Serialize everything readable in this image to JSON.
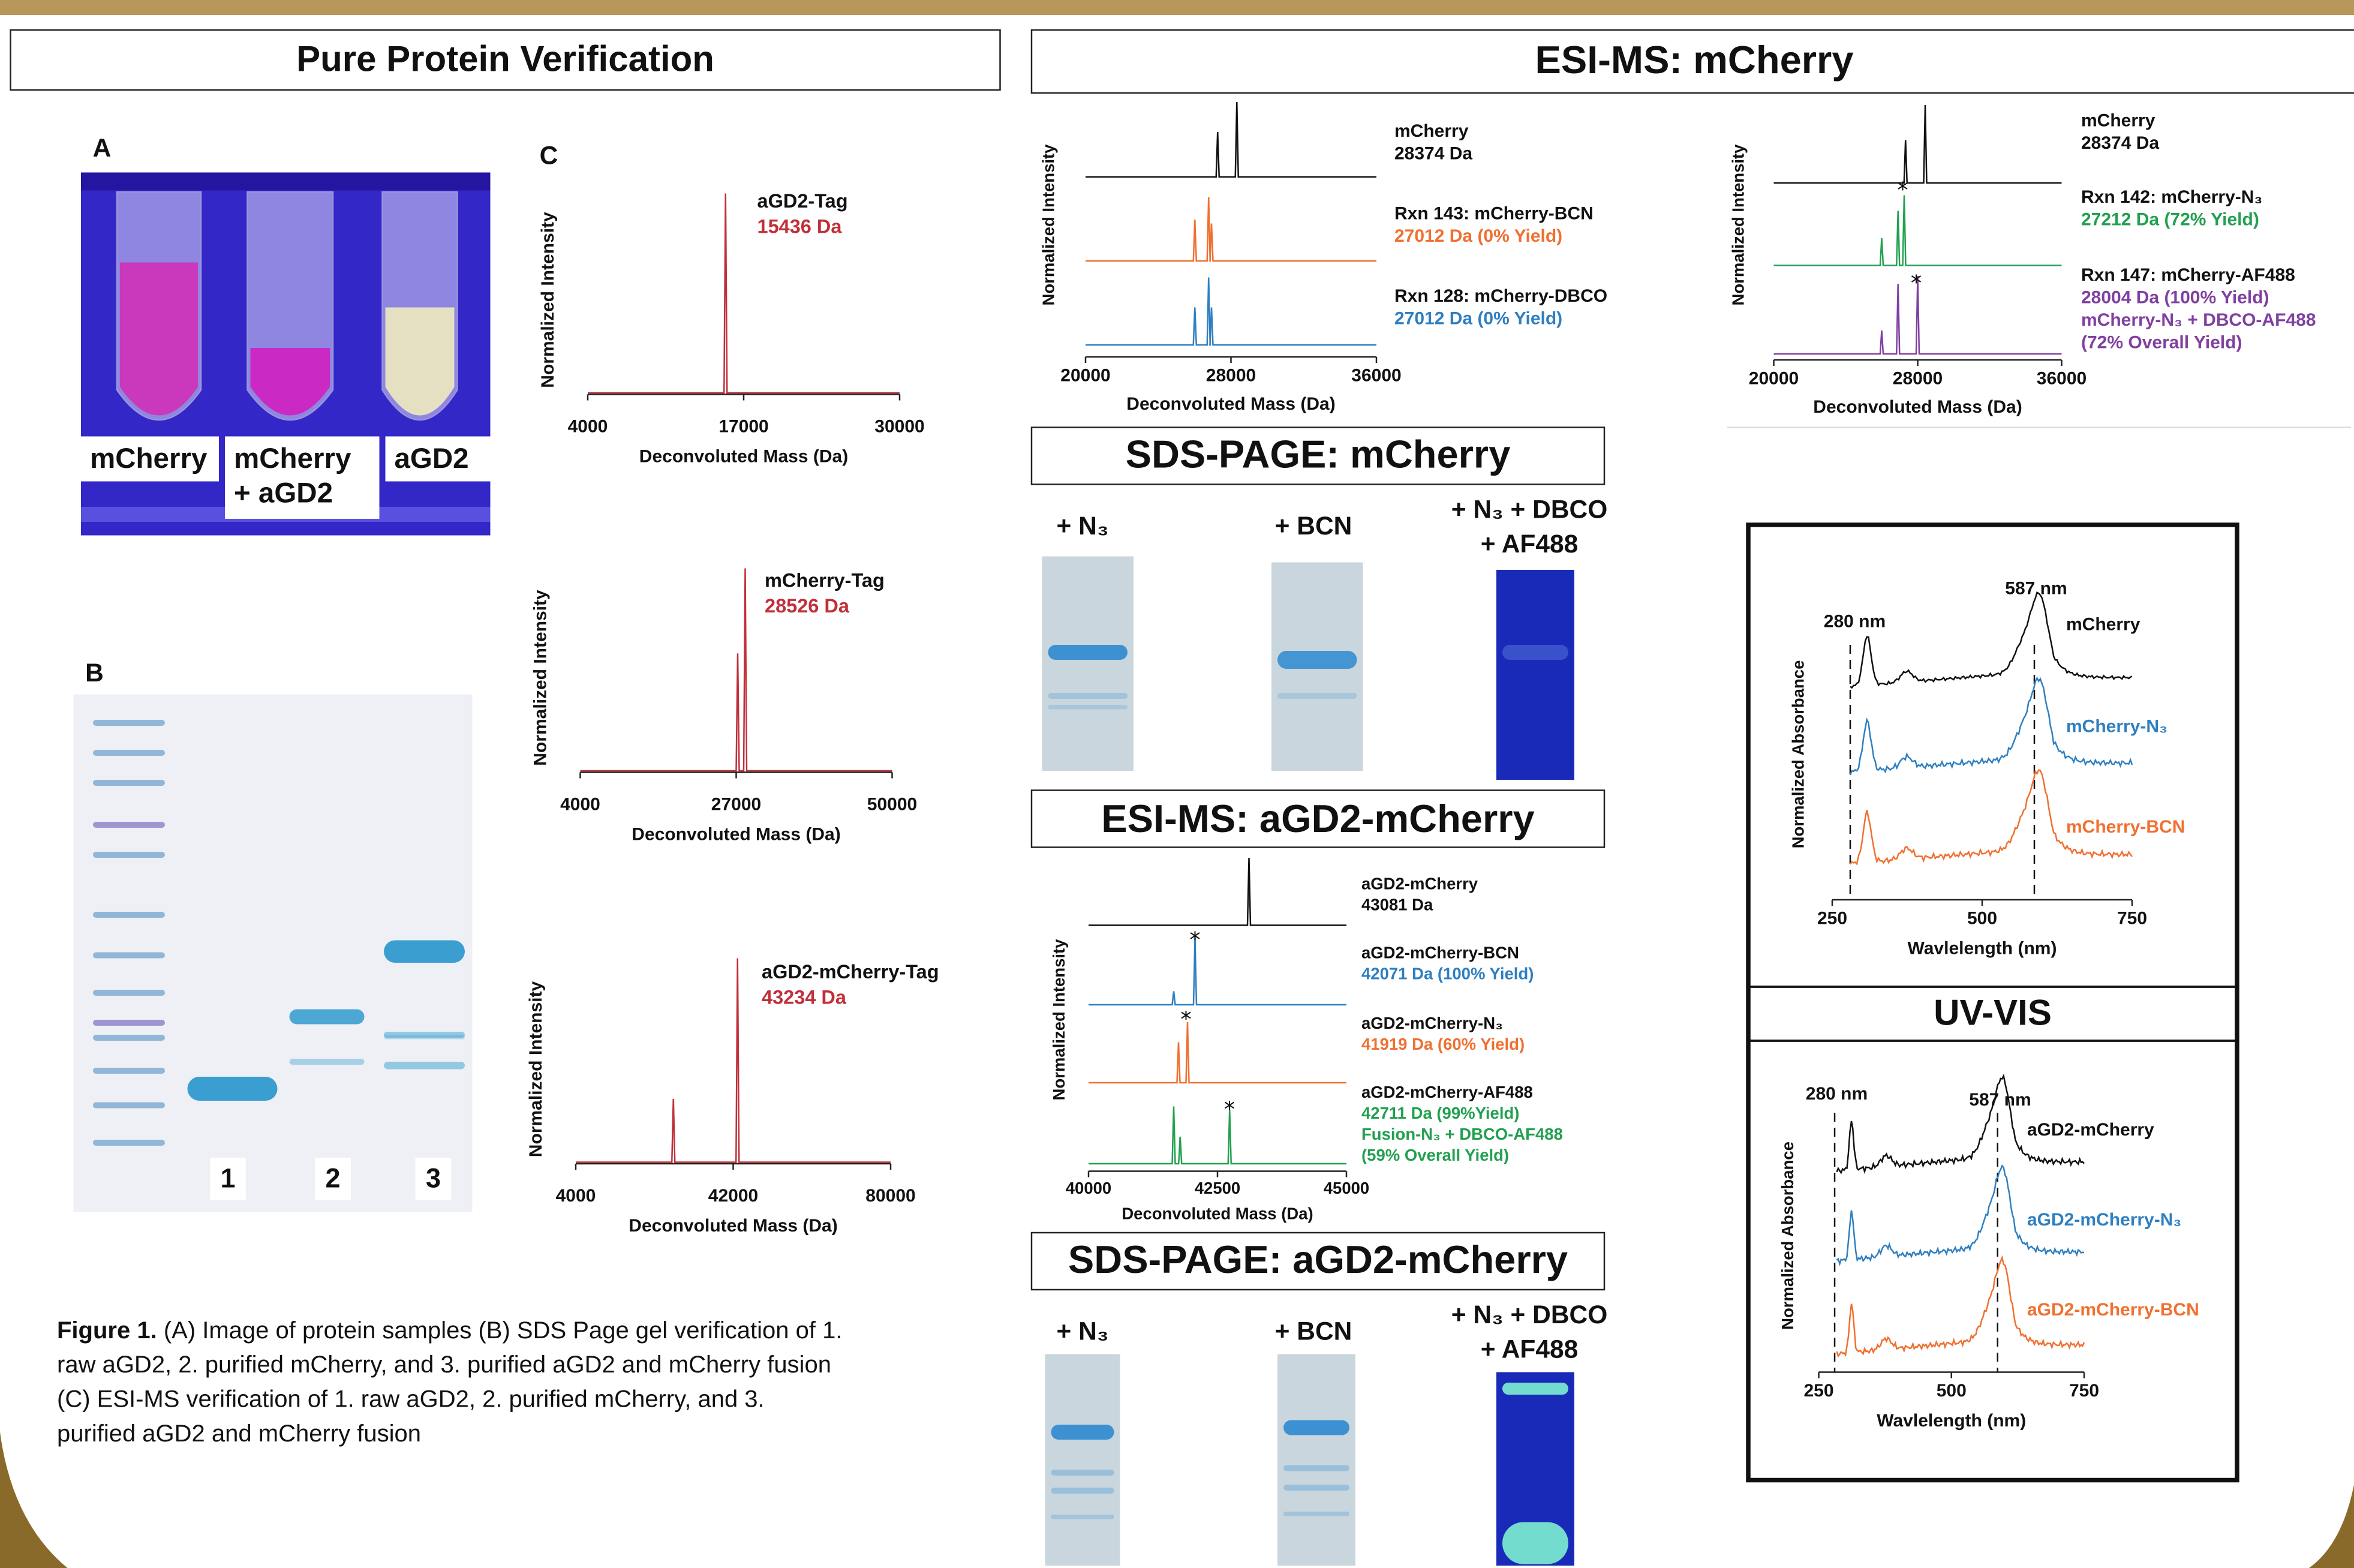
{
  "left": {
    "title": "Pure Protein Verification",
    "panel_a": {
      "label": "A",
      "samples": [
        [
          "mCherry"
        ],
        [
          "mCherry",
          "+ aGD2"
        ],
        [
          "aGD2"
        ]
      ]
    },
    "panel_b": {
      "label": "B",
      "lanes": [
        "1",
        "2",
        "3"
      ]
    },
    "panel_c": {
      "label": "C",
      "plots": [
        {
          "name": "aGD2-Tag",
          "mass": "15436 Da",
          "xlim": [
            4000,
            30000
          ],
          "xticks": [
            4000,
            17000,
            30000
          ],
          "xlabel": "Deconvoluted Mass (Da)",
          "ylabel": "Normalized Intensity"
        },
        {
          "name": "mCherry-Tag",
          "mass": "28526 Da",
          "xlim": [
            4000,
            50000
          ],
          "xticks": [
            4000,
            27000,
            50000
          ],
          "xlabel": "Deconvoluted Mass (Da)",
          "ylabel": "Normalized Intensity"
        },
        {
          "name": "aGD2-mCherry-Tag",
          "mass": "43234 Da",
          "xlim": [
            4000,
            80000
          ],
          "xticks": [
            4000,
            42000,
            80000
          ],
          "xlabel": "Deconvoluted Mass (Da)",
          "ylabel": "Normalized Intensity"
        }
      ]
    },
    "caption": {
      "lead": "Figure 1.",
      "lines": [
        " (A) Image of protein samples (B) SDS Page gel verification of 1.",
        "raw aGD2, 2. purified mCherry, and 3. purified aGD2 and mCherry fusion",
        "(C) ESI-MS verification of 1. raw aGD2, 2. purified mCherry, and 3.",
        "purified aGD2 and mCherry fusion"
      ]
    }
  },
  "esi_mcherry": {
    "title": "ESI-MS: mCherry",
    "plots": [
      {
        "xlim": [
          20000,
          36000
        ],
        "xticks": [
          20000,
          28000,
          36000
        ],
        "xlabel": "Deconvoluted Mass (Da)",
        "ylabel": "Normalized Intensity",
        "traces": [
          {
            "name": "mCherry",
            "details": [
              "28374 Da"
            ],
            "color": "#111111"
          },
          {
            "name": "Rxn 143: mCherry-BCN",
            "details": [
              "27012 Da (0% Yield)"
            ],
            "color": "#f07030"
          },
          {
            "name": "Rxn 128: mCherry-DBCO",
            "details": [
              "27012 Da (0% Yield)"
            ],
            "color": "#2f7fc0"
          }
        ]
      },
      {
        "xlim": [
          20000,
          36000
        ],
        "xticks": [
          20000,
          28000,
          36000
        ],
        "xlabel": "Deconvoluted Mass (Da)",
        "ylabel": "Normalized Intensity",
        "traces": [
          {
            "name": "mCherry",
            "details": [
              "28374 Da"
            ],
            "color": "#111111"
          },
          {
            "name": "Rxn 142: mCherry-N₃",
            "details": [
              "27212 Da (72% Yield)"
            ],
            "color": "#22a050"
          },
          {
            "name": "Rxn 147: mCherry-AF488",
            "details": [
              "28004 Da (100% Yield)",
              "mCherry-N₃ + DBCO-AF488",
              "(72% Overall Yield)"
            ],
            "color": "#8040a0"
          }
        ]
      }
    ]
  },
  "sds_mcherry": {
    "title": "SDS-PAGE: mCherry",
    "lanes": [
      [
        "+ N₃"
      ],
      [
        "+ BCN"
      ],
      [
        "+ N₃ + DBCO",
        "+ AF488"
      ]
    ]
  },
  "esi_agd2": {
    "title": "ESI-MS: aGD2-mCherry",
    "plot": {
      "xlim": [
        40000,
        45000
      ],
      "xticks": [
        40000,
        42500,
        45000
      ],
      "xlabel": "Deconvoluted Mass (Da)",
      "ylabel": "Normalized Intensity",
      "traces": [
        {
          "name": "aGD2-mCherry",
          "details": [
            "43081 Da"
          ],
          "color": "#111111"
        },
        {
          "name": "aGD2-mCherry-BCN",
          "details": [
            "42071 Da (100% Yield)"
          ],
          "color": "#2f7fc0"
        },
        {
          "name": "aGD2-mCherry-N₃",
          "details": [
            "41919 Da (60% Yield)"
          ],
          "color": "#f07030"
        },
        {
          "name": "aGD2-mCherry-AF488",
          "details": [
            "42711 Da (99%Yield)",
            "Fusion-N₃ + DBCO-AF488",
            "(59% Overall Yield)"
          ],
          "color": "#22a050"
        }
      ]
    }
  },
  "sds_agd2": {
    "title": "SDS-PAGE: aGD2-mCherry",
    "lanes": [
      [
        "+ N₃"
      ],
      [
        "+ BCN"
      ],
      [
        "+ N₃ + DBCO",
        "+ AF488"
      ]
    ]
  },
  "uv_vis": {
    "title": "UV-VIS",
    "plots": [
      {
        "annotations": [
          "280 nm",
          "587 nm"
        ],
        "xlim": [
          250,
          750
        ],
        "xticks": [
          250,
          500,
          750
        ],
        "xlabel": "Wavlelength (nm)",
        "ylabel": "Normalized Absorbance",
        "traces": [
          {
            "name": "mCherry",
            "color": "#111111"
          },
          {
            "name": "mCherry-N₃",
            "color": "#2f7fc0"
          },
          {
            "name": "mCherry-BCN",
            "color": "#f07030"
          }
        ]
      },
      {
        "annotations": [
          "280 nm",
          "587 nm"
        ],
        "xlim": [
          250,
          750
        ],
        "xticks": [
          250,
          500,
          750
        ],
        "xlabel": "Wavlelength (nm)",
        "ylabel": "Normalized Absorbance",
        "traces": [
          {
            "name": "aGD2-mCherry",
            "color": "#111111"
          },
          {
            "name": "aGD2-mCherry-N₃",
            "color": "#2f7fc0"
          },
          {
            "name": "aGD2-mCherry-BCN",
            "color": "#f07030"
          }
        ]
      }
    ]
  }
}
